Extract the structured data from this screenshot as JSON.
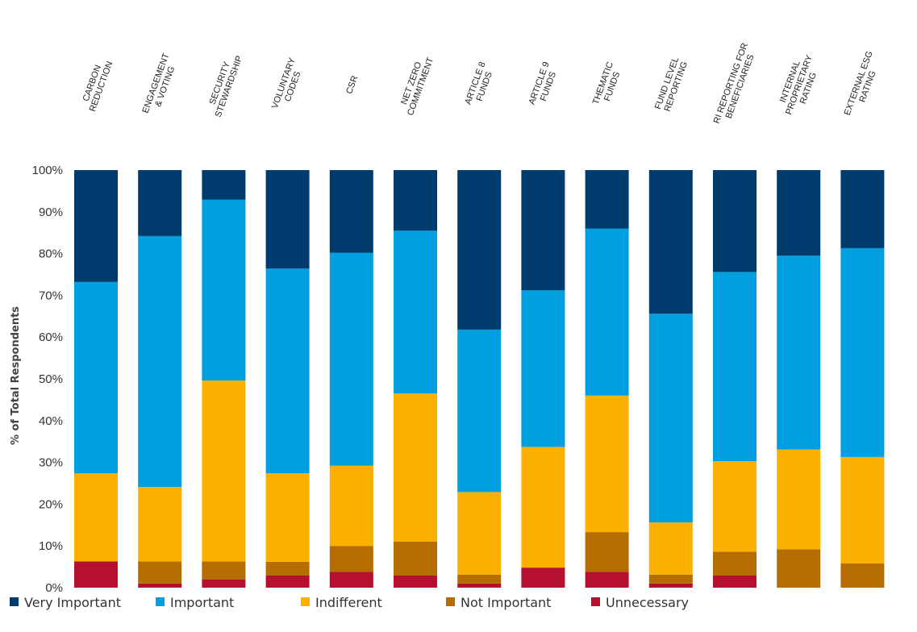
{
  "chart_data": {
    "type": "bar",
    "stacked": true,
    "ylabel": "% of Total Respondents",
    "ylim": [
      0,
      100
    ],
    "yticks": [
      "0%",
      "10%",
      "20%",
      "30%",
      "40%",
      "50%",
      "60%",
      "70%",
      "80%",
      "90%",
      "100%"
    ],
    "categories": [
      [
        "CARBON",
        "REDUCTION"
      ],
      [
        "ENGAGEMENT",
        "& VOTING"
      ],
      [
        "SECURITY",
        "STEWARDSHIP"
      ],
      [
        "VOLUNTARY",
        "CODES"
      ],
      [
        "CSR"
      ],
      [
        "NET ZERO",
        "COMMITMENT"
      ],
      [
        "ARTICLE 8",
        "FUNDS"
      ],
      [
        "ARTICLE 9",
        "FUNDS"
      ],
      [
        "THEMATIC",
        "FUNDS"
      ],
      [
        "FUND LEVEL",
        "REPORTING"
      ],
      [
        "RI REPORTING FOR",
        "BENEFICIARIES"
      ],
      [
        "INTERNAL",
        "PROPRIETARY",
        "RATING"
      ],
      [
        "EXTERNAL ESG",
        "RATING"
      ]
    ],
    "series": [
      {
        "name": "Unnecessary",
        "color": "#b5102f",
        "values": [
          6.3,
          1,
          2,
          2.9,
          3.8,
          2.9,
          1,
          4.8,
          3.8,
          1,
          2.9,
          0,
          0
        ]
      },
      {
        "name": "Not Important",
        "color": "#b56d00",
        "values": [
          0,
          5.3,
          4.3,
          3.3,
          6.2,
          8.1,
          2.1,
          0,
          9.5,
          2.1,
          5.7,
          9.2,
          5.8
        ]
      },
      {
        "name": "Indifferent",
        "color": "#fbb000",
        "values": [
          21.1,
          17.8,
          43.3,
          21.2,
          19.2,
          35.5,
          19.8,
          28.9,
          32.7,
          12.5,
          21.7,
          23.9,
          25.5
        ]
      },
      {
        "name": "Important",
        "color": "#009fdf",
        "values": [
          45.8,
          60.1,
          43.3,
          49.0,
          51.0,
          39.0,
          38.9,
          37.5,
          40.0,
          50.0,
          45.3,
          46.4,
          50.0
        ]
      },
      {
        "name": "Very Important",
        "color": "#003b6e",
        "values": [
          26.8,
          15.8,
          7.1,
          23.6,
          19.8,
          14.5,
          38.2,
          28.8,
          14.0,
          34.4,
          24.4,
          20.5,
          18.7
        ]
      }
    ],
    "legend": {
      "position": "bottom",
      "items": [
        {
          "name": "Very Important",
          "color": "#003b6e"
        },
        {
          "name": "Important",
          "color": "#009fdf"
        },
        {
          "name": "Indifferent",
          "color": "#fbb000"
        },
        {
          "name": "Not Important",
          "color": "#b56d00"
        },
        {
          "name": "Unnecessary",
          "color": "#b5102f"
        }
      ]
    },
    "grid": false
  }
}
